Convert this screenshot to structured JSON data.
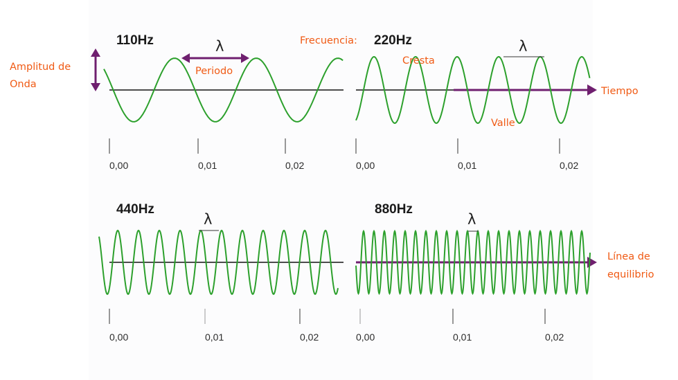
{
  "lambda_symbol": "λ",
  "colors": {
    "wave": "#2ca02c",
    "annotation": "#f05a14",
    "arrow": "#6f1f6f",
    "axis": "#111111"
  },
  "panels": [
    {
      "id": "p110",
      "freq_label": "110Hz",
      "frequency_hz": 110,
      "ticks": [
        "0,00",
        "0,01",
        "0,02"
      ]
    },
    {
      "id": "p220",
      "freq_label": "220Hz",
      "frequency_hz": 220,
      "ticks": [
        "0,00",
        "0,01",
        "0,02"
      ]
    },
    {
      "id": "p440",
      "freq_label": "440Hz",
      "frequency_hz": 440,
      "ticks": [
        "0,00",
        "0,01",
        "0,02"
      ]
    },
    {
      "id": "p880",
      "freq_label": "880Hz",
      "frequency_hz": 880,
      "ticks": [
        "0,00",
        "0,01",
        "0,02"
      ]
    }
  ],
  "annotations": {
    "amplitud": [
      "Amplitud de",
      "Onda"
    ],
    "periodo": "Periodo",
    "frecuencia": "Frecuencia:",
    "cresta": "Cresta",
    "valle": "Valle",
    "tiempo": "Tiempo",
    "equilibrio": [
      "Línea de",
      "equilibrio"
    ]
  }
}
